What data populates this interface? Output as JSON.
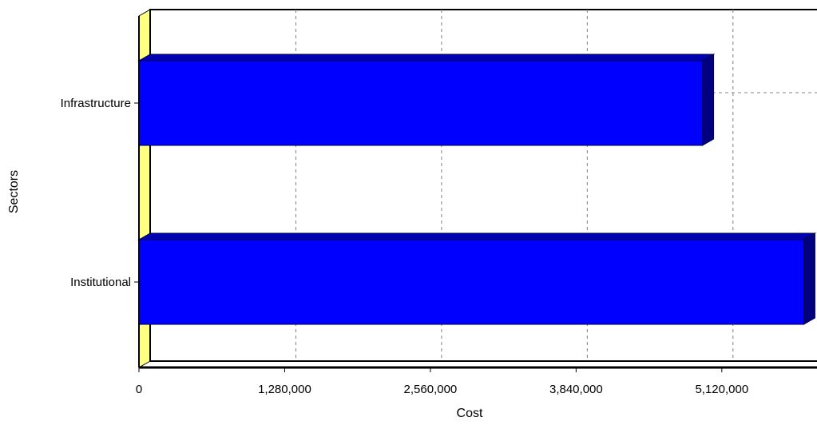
{
  "chart_data": {
    "type": "bar",
    "orientation": "horizontal",
    "three_d": true,
    "categories": [
      "Infrastructure",
      "Institutional"
    ],
    "values": [
      4950000,
      5840000
    ],
    "xlabel": "Cost",
    "ylabel": "Sectors",
    "xlim": [
      0,
      5900000
    ],
    "x_ticks": [
      0,
      1280000,
      2560000,
      3840000,
      5120000
    ],
    "x_tick_labels": [
      "0",
      "1,280,000",
      "2,560,000",
      "3,840,000",
      "5,120,000"
    ],
    "grid": true,
    "legend": "none",
    "colors": {
      "bar_face": "#0000ff",
      "bar_side": "#000080",
      "bar_top": "#0000b4",
      "wall": "#ffff80",
      "grid": "#808080"
    }
  }
}
